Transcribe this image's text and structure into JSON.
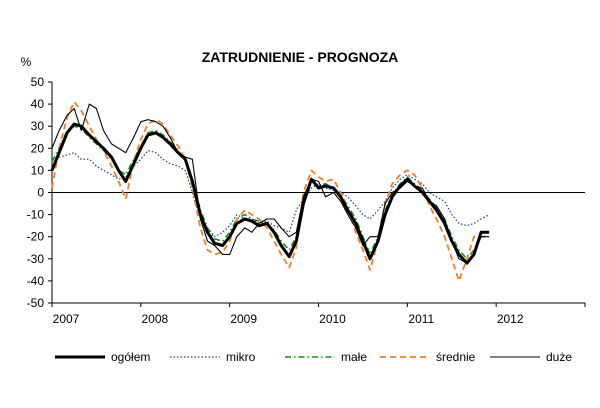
{
  "chart_data": {
    "type": "line",
    "title": "ZATRUDNIENIE  - PROGNOZA",
    "ylabel": "%",
    "xlabel": "",
    "ylim": [
      -50,
      50
    ],
    "yticks": [
      50,
      40,
      30,
      20,
      10,
      0,
      -10,
      -20,
      -30,
      -40,
      -50
    ],
    "xlim": [
      2007,
      2013
    ],
    "xtick_labels": [
      "2007",
      "2008",
      "2009",
      "2010",
      "2011",
      "2012"
    ],
    "grid": false,
    "legend_position": "bottom",
    "series": [
      {
        "name": "ogółem",
        "color": "#000000",
        "style": "solid-thick",
        "x": [
          2007.0,
          2007.08,
          2007.17,
          2007.25,
          2007.33,
          2007.42,
          2007.5,
          2007.58,
          2007.67,
          2007.75,
          2007.83,
          2007.92,
          2008.0,
          2008.08,
          2008.17,
          2008.25,
          2008.33,
          2008.42,
          2008.5,
          2008.58,
          2008.67,
          2008.75,
          2008.83,
          2008.92,
          2009.0,
          2009.08,
          2009.17,
          2009.25,
          2009.33,
          2009.42,
          2009.5,
          2009.58,
          2009.67,
          2009.75,
          2009.83,
          2009.92,
          2010.0,
          2010.08,
          2010.17,
          2010.25,
          2010.33,
          2010.42,
          2010.5,
          2010.58,
          2010.67,
          2010.75,
          2010.83,
          2010.92,
          2011.0,
          2011.08,
          2011.17,
          2011.25,
          2011.33,
          2011.42,
          2011.5,
          2011.58,
          2011.67,
          2011.75,
          2011.83,
          2011.92
        ],
        "y": [
          10,
          18,
          27,
          31,
          30,
          26,
          23,
          20,
          16,
          10,
          5,
          13,
          20,
          26,
          27,
          25,
          22,
          18,
          15,
          5,
          -10,
          -18,
          -23,
          -24,
          -20,
          -14,
          -12,
          -13,
          -15,
          -14,
          -18,
          -24,
          -29,
          -22,
          -5,
          6,
          2,
          3,
          2,
          -2,
          -8,
          -14,
          -22,
          -30,
          -22,
          -10,
          -2,
          3,
          6,
          3,
          0,
          -4,
          -8,
          -14,
          -22,
          -28,
          -32,
          -28,
          -18,
          -18
        ]
      },
      {
        "name": "mikro",
        "color": "#1f3c88",
        "style": "dotted",
        "x": [
          2007.0,
          2007.08,
          2007.17,
          2007.25,
          2007.33,
          2007.42,
          2007.5,
          2007.58,
          2007.67,
          2007.75,
          2007.83,
          2007.92,
          2008.0,
          2008.08,
          2008.17,
          2008.25,
          2008.33,
          2008.42,
          2008.5,
          2008.58,
          2008.67,
          2008.75,
          2008.83,
          2008.92,
          2009.0,
          2009.08,
          2009.17,
          2009.25,
          2009.33,
          2009.42,
          2009.5,
          2009.58,
          2009.67,
          2009.75,
          2009.83,
          2009.92,
          2010.0,
          2010.08,
          2010.17,
          2010.25,
          2010.33,
          2010.42,
          2010.5,
          2010.58,
          2010.67,
          2010.75,
          2010.83,
          2010.92,
          2011.0,
          2011.08,
          2011.17,
          2011.25,
          2011.33,
          2011.42,
          2011.5,
          2011.58,
          2011.67,
          2011.75,
          2011.83,
          2011.92
        ],
        "y": [
          15,
          16,
          17,
          18,
          15,
          15,
          12,
          10,
          8,
          6,
          7,
          12,
          15,
          19,
          18,
          15,
          13,
          12,
          10,
          0,
          -12,
          -16,
          -20,
          -18,
          -15,
          -10,
          -12,
          -12,
          -14,
          -13,
          -15,
          -16,
          -18,
          -8,
          -3,
          2,
          4,
          2,
          1,
          0,
          -2,
          -6,
          -10,
          -12,
          -8,
          -4,
          2,
          6,
          8,
          6,
          4,
          0,
          -2,
          -4,
          -10,
          -14,
          -15,
          -14,
          -12,
          -10
        ]
      },
      {
        "name": "małe",
        "color": "#1a8a1a",
        "style": "dash-dot",
        "x": [
          2007.0,
          2007.08,
          2007.17,
          2007.25,
          2007.33,
          2007.42,
          2007.5,
          2007.58,
          2007.67,
          2007.75,
          2007.83,
          2007.92,
          2008.0,
          2008.08,
          2008.17,
          2008.25,
          2008.33,
          2008.42,
          2008.5,
          2008.58,
          2008.67,
          2008.75,
          2008.83,
          2008.92,
          2009.0,
          2009.08,
          2009.17,
          2009.25,
          2009.33,
          2009.42,
          2009.5,
          2009.58,
          2009.67,
          2009.75,
          2009.83,
          2009.92,
          2010.0,
          2010.08,
          2010.17,
          2010.25,
          2010.33,
          2010.42,
          2010.5,
          2010.58,
          2010.67,
          2010.75,
          2010.83,
          2010.92,
          2011.0,
          2011.08,
          2011.17,
          2011.25,
          2011.33,
          2011.42,
          2011.5,
          2011.58,
          2011.67,
          2011.75,
          2011.83,
          2011.92
        ],
        "y": [
          14,
          20,
          28,
          30,
          29,
          25,
          22,
          19,
          15,
          10,
          8,
          15,
          21,
          27,
          28,
          26,
          23,
          19,
          15,
          6,
          -8,
          -16,
          -21,
          -22,
          -18,
          -12,
          -10,
          -12,
          -13,
          -14,
          -17,
          -22,
          -26,
          -20,
          -4,
          5,
          3,
          4,
          2,
          -1,
          -6,
          -12,
          -20,
          -28,
          -20,
          -8,
          -1,
          4,
          7,
          4,
          1,
          -3,
          -7,
          -12,
          -20,
          -26,
          -30,
          -26,
          -18,
          -18
        ]
      },
      {
        "name": "średnie",
        "color": "#f08020",
        "style": "dashed",
        "x": [
          2007.0,
          2007.08,
          2007.17,
          2007.25,
          2007.33,
          2007.42,
          2007.5,
          2007.58,
          2007.67,
          2007.75,
          2007.83,
          2007.92,
          2008.0,
          2008.08,
          2008.17,
          2008.25,
          2008.33,
          2008.42,
          2008.5,
          2008.58,
          2008.67,
          2008.75,
          2008.83,
          2008.92,
          2009.0,
          2009.08,
          2009.17,
          2009.25,
          2009.33,
          2009.42,
          2009.5,
          2009.58,
          2009.67,
          2009.75,
          2009.83,
          2009.92,
          2010.0,
          2010.08,
          2010.17,
          2010.25,
          2010.33,
          2010.42,
          2010.5,
          2010.58,
          2010.67,
          2010.75,
          2010.83,
          2010.92,
          2011.0,
          2011.08,
          2011.17,
          2011.25,
          2011.33,
          2011.42,
          2011.5,
          2011.58,
          2011.67,
          2011.75,
          2011.83,
          2011.92
        ],
        "y": [
          2,
          20,
          34,
          41,
          37,
          30,
          24,
          19,
          12,
          5,
          -3,
          14,
          24,
          31,
          33,
          31,
          26,
          21,
          15,
          2,
          -16,
          -26,
          -28,
          -27,
          -22,
          -12,
          -8,
          -10,
          -12,
          -16,
          -22,
          -28,
          -34,
          -25,
          0,
          10,
          7,
          5,
          6,
          0,
          -8,
          -18,
          -26,
          -35,
          -22,
          -5,
          4,
          8,
          10,
          8,
          2,
          -6,
          -12,
          -20,
          -30,
          -40,
          -30,
          -20,
          -20,
          -20
        ]
      },
      {
        "name": "duże",
        "color": "#000000",
        "style": "solid-thin",
        "x": [
          2007.0,
          2007.08,
          2007.17,
          2007.25,
          2007.33,
          2007.42,
          2007.5,
          2007.58,
          2007.67,
          2007.75,
          2007.83,
          2007.92,
          2008.0,
          2008.08,
          2008.17,
          2008.25,
          2008.33,
          2008.42,
          2008.5,
          2008.58,
          2008.67,
          2008.75,
          2008.83,
          2008.92,
          2009.0,
          2009.08,
          2009.17,
          2009.25,
          2009.33,
          2009.42,
          2009.5,
          2009.58,
          2009.67,
          2009.75,
          2009.83,
          2009.92,
          2010.0,
          2010.08,
          2010.17,
          2010.25,
          2010.33,
          2010.42,
          2010.5,
          2010.58,
          2010.67,
          2010.75,
          2010.83,
          2010.92,
          2011.0,
          2011.08,
          2011.17,
          2011.25,
          2011.33,
          2011.42,
          2011.5,
          2011.58,
          2011.67,
          2011.75,
          2011.83,
          2011.92
        ],
        "y": [
          20,
          28,
          35,
          38,
          28,
          40,
          38,
          28,
          22,
          20,
          18,
          25,
          32,
          33,
          32,
          30,
          25,
          18,
          16,
          15,
          -12,
          -22,
          -24,
          -28,
          -28,
          -20,
          -16,
          -18,
          -14,
          -12,
          -12,
          -16,
          -20,
          -18,
          -2,
          6,
          5,
          -2,
          0,
          -4,
          -10,
          -16,
          -24,
          -20,
          -20,
          -5,
          0,
          2,
          5,
          3,
          2,
          -4,
          -6,
          -12,
          -22,
          -30,
          -32,
          -28,
          -20,
          -20
        ]
      }
    ]
  }
}
